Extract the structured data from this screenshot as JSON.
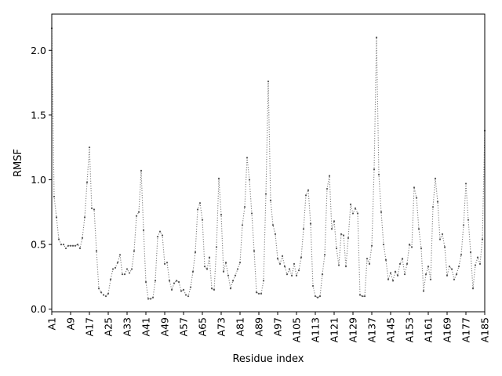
{
  "chart_data": {
    "type": "line",
    "title": "",
    "xlabel": "Residue index",
    "ylabel": "RMSF",
    "ylim": [
      -0.02,
      2.28
    ],
    "xlim": [
      1,
      185
    ],
    "y_ticks": [
      "0.0",
      "0.5",
      "1.0",
      "1.5",
      "2.0"
    ],
    "y_tick_values": [
      0.0,
      0.5,
      1.0,
      1.5,
      2.0
    ],
    "x_tick_labels": [
      "A1",
      "A9",
      "A17",
      "A25",
      "A33",
      "A41",
      "A49",
      "A57",
      "A65",
      "A73",
      "A81",
      "A89",
      "A97",
      "A105",
      "A113",
      "A121",
      "A129",
      "A137",
      "A145",
      "A153",
      "A161",
      "A169",
      "A177",
      "A185"
    ],
    "x_tick_values": [
      1,
      9,
      17,
      25,
      33,
      41,
      49,
      57,
      65,
      73,
      81,
      89,
      97,
      105,
      113,
      121,
      129,
      137,
      145,
      153,
      161,
      169,
      177,
      185
    ],
    "grid": false,
    "legend": false,
    "line_color": "#7f7f7f",
    "line_style": "dotted",
    "marker_color": "#555555",
    "series": [
      {
        "x": [
          1,
          2,
          3,
          4,
          5,
          6,
          7,
          8,
          9,
          10,
          11,
          12,
          13,
          14,
          15,
          16,
          17,
          18,
          19,
          20,
          21,
          22,
          23,
          24,
          25,
          26,
          27,
          28,
          29,
          30,
          31,
          32,
          33,
          34,
          35,
          36,
          37,
          38,
          39,
          40,
          41,
          42,
          43,
          44,
          45,
          46,
          47,
          48,
          49,
          50,
          51,
          52,
          53,
          54,
          55,
          56,
          57,
          58,
          59,
          60,
          61,
          62,
          63,
          64,
          65,
          66,
          67,
          68,
          69,
          70,
          71,
          72,
          73,
          74,
          75,
          76,
          77,
          78,
          79,
          80,
          81,
          82,
          83,
          84,
          85,
          86,
          87,
          88,
          89,
          90,
          91,
          92,
          93,
          94,
          95,
          96,
          97,
          98,
          99,
          100,
          101,
          102,
          103,
          104,
          105,
          106,
          107,
          108,
          109,
          110,
          111,
          112,
          113,
          114,
          115,
          116,
          117,
          118,
          119,
          120,
          121,
          122,
          123,
          124,
          125,
          126,
          127,
          128,
          129,
          130,
          131,
          132,
          133,
          134,
          135,
          136,
          137,
          138,
          139,
          140,
          141,
          142,
          143,
          144,
          145,
          146,
          147,
          148,
          149,
          150,
          151,
          152,
          153,
          154,
          155,
          156,
          157,
          158,
          159,
          160,
          161,
          162,
          163,
          164,
          165,
          166,
          167,
          168,
          169,
          170,
          171,
          172,
          173,
          174,
          175,
          176,
          177,
          178,
          179,
          180,
          181,
          182,
          183,
          184,
          185
        ],
        "values": [
          2.17,
          0.87,
          0.71,
          0.54,
          0.5,
          0.5,
          0.47,
          0.49,
          0.49,
          0.49,
          0.49,
          0.5,
          0.47,
          0.55,
          0.71,
          0.98,
          1.25,
          0.78,
          0.77,
          0.45,
          0.16,
          0.13,
          0.11,
          0.1,
          0.12,
          0.23,
          0.31,
          0.32,
          0.36,
          0.42,
          0.27,
          0.27,
          0.31,
          0.28,
          0.31,
          0.45,
          0.72,
          0.75,
          1.07,
          0.61,
          0.21,
          0.08,
          0.08,
          0.09,
          0.22,
          0.56,
          0.6,
          0.57,
          0.35,
          0.36,
          0.22,
          0.15,
          0.2,
          0.22,
          0.21,
          0.14,
          0.15,
          0.11,
          0.1,
          0.17,
          0.29,
          0.44,
          0.77,
          0.82,
          0.69,
          0.33,
          0.31,
          0.4,
          0.16,
          0.15,
          0.48,
          1.01,
          0.73,
          0.29,
          0.36,
          0.26,
          0.16,
          0.22,
          0.26,
          0.31,
          0.36,
          0.65,
          0.79,
          1.17,
          1.0,
          0.74,
          0.45,
          0.13,
          0.12,
          0.12,
          0.22,
          0.89,
          1.76,
          0.84,
          0.65,
          0.58,
          0.39,
          0.35,
          0.41,
          0.33,
          0.27,
          0.31,
          0.26,
          0.35,
          0.26,
          0.3,
          0.4,
          0.62,
          0.88,
          0.92,
          0.66,
          0.18,
          0.1,
          0.09,
          0.1,
          0.27,
          0.42,
          0.93,
          1.03,
          0.62,
          0.68,
          0.47,
          0.34,
          0.58,
          0.57,
          0.33,
          0.55,
          0.81,
          0.74,
          0.78,
          0.74,
          0.11,
          0.1,
          0.1,
          0.39,
          0.35,
          0.49,
          1.08,
          2.1,
          1.04,
          0.75,
          0.5,
          0.38,
          0.23,
          0.28,
          0.22,
          0.29,
          0.26,
          0.35,
          0.39,
          0.27,
          0.35,
          0.5,
          0.48,
          0.94,
          0.86,
          0.62,
          0.47,
          0.14,
          0.27,
          0.33,
          0.23,
          0.79,
          1.01,
          0.83,
          0.54,
          0.58,
          0.48,
          0.26,
          0.33,
          0.31,
          0.23,
          0.27,
          0.33,
          0.42,
          0.65,
          0.97,
          0.69,
          0.44,
          0.16,
          0.34,
          0.4,
          0.35,
          0.54,
          1.38
        ]
      }
    ]
  }
}
